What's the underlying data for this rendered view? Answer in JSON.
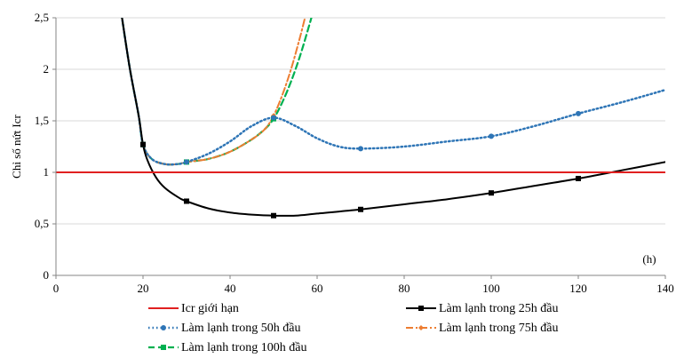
{
  "chart_data": {
    "type": "line",
    "title": "",
    "xlabel": "(h)",
    "ylabel": "Chỉ số nứt Icr",
    "xlim": [
      0,
      140
    ],
    "ylim": [
      0,
      2.5
    ],
    "x_ticks": [
      "0",
      "20",
      "40",
      "60",
      "80",
      "100",
      "120",
      "140"
    ],
    "y_ticks": [
      "0",
      "0,5",
      "1",
      "1,5",
      "2",
      "2,5"
    ],
    "grid": "horizontal",
    "legend_position": "bottom",
    "series": [
      {
        "name": "Icr giới hạn",
        "color": "#e02020",
        "style": "solid",
        "marker": "none",
        "x": [
          0,
          140
        ],
        "y": [
          1.0,
          1.0
        ],
        "markers": []
      },
      {
        "name": "Làm lạnh trong 25h đầu",
        "color": "#000000",
        "style": "solid",
        "marker": "square",
        "x": [
          15,
          17,
          19,
          20,
          21,
          23,
          25,
          28,
          30,
          35,
          40,
          45,
          50,
          55,
          60,
          70,
          80,
          90,
          100,
          110,
          120,
          130,
          140
        ],
        "y": [
          2.55,
          2.0,
          1.55,
          1.27,
          1.12,
          0.95,
          0.85,
          0.76,
          0.72,
          0.65,
          0.61,
          0.59,
          0.58,
          0.58,
          0.6,
          0.64,
          0.69,
          0.74,
          0.8,
          0.87,
          0.94,
          1.02,
          1.1
        ],
        "markers": [
          [
            20,
            1.27
          ],
          [
            30,
            0.72
          ],
          [
            50,
            0.58
          ],
          [
            70,
            0.64
          ],
          [
            100,
            0.8
          ],
          [
            120,
            0.94
          ]
        ]
      },
      {
        "name": "Làm lạnh trong 50h đầu",
        "color": "#2e75b6",
        "style": "dotted",
        "marker": "circle",
        "x": [
          15,
          17,
          19,
          20,
          22,
          25,
          28,
          30,
          35,
          40,
          45,
          50,
          55,
          60,
          65,
          70,
          80,
          90,
          100,
          110,
          120,
          130,
          140
        ],
        "y": [
          2.55,
          2.0,
          1.55,
          1.27,
          1.13,
          1.08,
          1.08,
          1.1,
          1.18,
          1.3,
          1.45,
          1.53,
          1.45,
          1.33,
          1.25,
          1.23,
          1.25,
          1.3,
          1.35,
          1.45,
          1.57,
          1.68,
          1.8
        ],
        "markers": [
          [
            20,
            1.27
          ],
          [
            30,
            1.1
          ],
          [
            50,
            1.53
          ],
          [
            70,
            1.23
          ],
          [
            100,
            1.35
          ],
          [
            120,
            1.57
          ]
        ]
      },
      {
        "name": "Làm lạnh trong 75h đầu",
        "color": "#ed7d31",
        "style": "dashdot",
        "marker": "diamond",
        "x": [
          15,
          17,
          19,
          20,
          22,
          25,
          28,
          30,
          35,
          40,
          45,
          48,
          50,
          52,
          54,
          56,
          57.5
        ],
        "y": [
          2.55,
          2.0,
          1.55,
          1.27,
          1.13,
          1.08,
          1.08,
          1.1,
          1.13,
          1.2,
          1.32,
          1.42,
          1.55,
          1.75,
          2.0,
          2.3,
          2.55
        ],
        "markers": [
          [
            20,
            1.27
          ],
          [
            30,
            1.1
          ],
          [
            50,
            1.55
          ]
        ]
      },
      {
        "name": "Làm lạnh trong 100h đầu",
        "color": "#00b050",
        "style": "dashed",
        "marker": "square",
        "x": [
          15,
          17,
          19,
          20,
          22,
          25,
          28,
          30,
          35,
          40,
          45,
          48,
          50,
          52,
          54,
          56,
          58,
          59
        ],
        "y": [
          2.55,
          2.0,
          1.55,
          1.27,
          1.13,
          1.08,
          1.08,
          1.1,
          1.13,
          1.2,
          1.32,
          1.42,
          1.52,
          1.68,
          1.88,
          2.12,
          2.4,
          2.55
        ],
        "markers": [
          [
            20,
            1.27
          ],
          [
            30,
            1.1
          ],
          [
            50,
            1.52
          ]
        ]
      }
    ]
  }
}
